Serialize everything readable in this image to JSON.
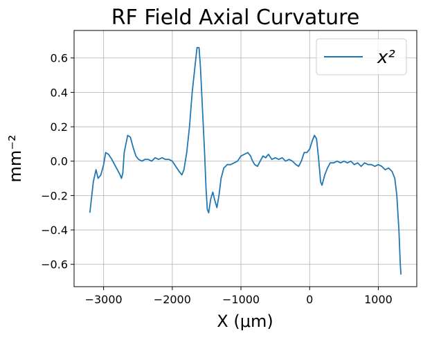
{
  "chart_data": {
    "type": "line",
    "title": "RF Field Axial Curvature",
    "xlabel": "X (μm)",
    "ylabel": "mm⁻²",
    "xlim": [
      -3430,
      1560
    ],
    "ylim": [
      -0.73,
      0.76
    ],
    "x_ticks": [
      -3000,
      -2000,
      -1000,
      0,
      1000
    ],
    "x_tick_labels": [
      "−3000",
      "−2000",
      "−1000",
      "0",
      "1000"
    ],
    "y_ticks": [
      -0.6,
      -0.4,
      -0.2,
      0.0,
      0.2,
      0.4,
      0.6
    ],
    "y_tick_labels": [
      "−0.6",
      "−0.4",
      "−0.2",
      "0.0",
      "0.2",
      "0.4",
      "0.6"
    ],
    "grid": true,
    "legend_position": "top-right",
    "series": [
      {
        "name": "x²",
        "color": "#1f77b4",
        "points": [
          [
            -3200,
            -0.3
          ],
          [
            -3150,
            -0.12
          ],
          [
            -3110,
            -0.05
          ],
          [
            -3080,
            -0.1
          ],
          [
            -3040,
            -0.08
          ],
          [
            -3000,
            -0.02
          ],
          [
            -2970,
            0.05
          ],
          [
            -2930,
            0.04
          ],
          [
            -2880,
            0.01
          ],
          [
            -2840,
            -0.02
          ],
          [
            -2800,
            -0.05
          ],
          [
            -2760,
            -0.08
          ],
          [
            -2740,
            -0.1
          ],
          [
            -2720,
            -0.07
          ],
          [
            -2700,
            0.05
          ],
          [
            -2650,
            0.15
          ],
          [
            -2610,
            0.14
          ],
          [
            -2570,
            0.08
          ],
          [
            -2530,
            0.03
          ],
          [
            -2490,
            0.01
          ],
          [
            -2440,
            0.0
          ],
          [
            -2400,
            0.01
          ],
          [
            -2350,
            0.01
          ],
          [
            -2300,
            0.0
          ],
          [
            -2250,
            0.02
          ],
          [
            -2200,
            0.01
          ],
          [
            -2150,
            0.02
          ],
          [
            -2100,
            0.01
          ],
          [
            -2050,
            0.01
          ],
          [
            -2000,
            0.0
          ],
          [
            -1950,
            -0.03
          ],
          [
            -1900,
            -0.06
          ],
          [
            -1860,
            -0.08
          ],
          [
            -1830,
            -0.05
          ],
          [
            -1790,
            0.05
          ],
          [
            -1750,
            0.2
          ],
          [
            -1710,
            0.4
          ],
          [
            -1670,
            0.55
          ],
          [
            -1640,
            0.66
          ],
          [
            -1610,
            0.66
          ],
          [
            -1590,
            0.55
          ],
          [
            -1560,
            0.3
          ],
          [
            -1530,
            0.05
          ],
          [
            -1510,
            -0.15
          ],
          [
            -1490,
            -0.28
          ],
          [
            -1470,
            -0.3
          ],
          [
            -1440,
            -0.22
          ],
          [
            -1410,
            -0.18
          ],
          [
            -1380,
            -0.23
          ],
          [
            -1350,
            -0.27
          ],
          [
            -1320,
            -0.2
          ],
          [
            -1290,
            -0.1
          ],
          [
            -1250,
            -0.04
          ],
          [
            -1200,
            -0.02
          ],
          [
            -1150,
            -0.02
          ],
          [
            -1100,
            -0.01
          ],
          [
            -1050,
            0.0
          ],
          [
            -1000,
            0.03
          ],
          [
            -950,
            0.04
          ],
          [
            -900,
            0.05
          ],
          [
            -860,
            0.03
          ],
          [
            -830,
            0.0
          ],
          [
            -800,
            -0.02
          ],
          [
            -760,
            -0.03
          ],
          [
            -720,
            0.0
          ],
          [
            -680,
            0.03
          ],
          [
            -640,
            0.02
          ],
          [
            -600,
            0.04
          ],
          [
            -550,
            0.01
          ],
          [
            -500,
            0.02
          ],
          [
            -450,
            0.01
          ],
          [
            -400,
            0.02
          ],
          [
            -350,
            0.0
          ],
          [
            -300,
            0.01
          ],
          [
            -250,
            0.0
          ],
          [
            -200,
            -0.02
          ],
          [
            -160,
            -0.03
          ],
          [
            -120,
            0.0
          ],
          [
            -80,
            0.05
          ],
          [
            -40,
            0.05
          ],
          [
            0,
            0.07
          ],
          [
            40,
            0.12
          ],
          [
            70,
            0.15
          ],
          [
            100,
            0.13
          ],
          [
            130,
            0.02
          ],
          [
            160,
            -0.12
          ],
          [
            180,
            -0.14
          ],
          [
            220,
            -0.08
          ],
          [
            260,
            -0.04
          ],
          [
            300,
            -0.01
          ],
          [
            350,
            -0.01
          ],
          [
            400,
            0.0
          ],
          [
            450,
            -0.01
          ],
          [
            500,
            0.0
          ],
          [
            550,
            -0.01
          ],
          [
            600,
            0.0
          ],
          [
            650,
            -0.02
          ],
          [
            700,
            -0.01
          ],
          [
            750,
            -0.03
          ],
          [
            800,
            -0.01
          ],
          [
            850,
            -0.02
          ],
          [
            900,
            -0.02
          ],
          [
            950,
            -0.03
          ],
          [
            1000,
            -0.02
          ],
          [
            1050,
            -0.03
          ],
          [
            1100,
            -0.05
          ],
          [
            1150,
            -0.04
          ],
          [
            1200,
            -0.06
          ],
          [
            1240,
            -0.1
          ],
          [
            1270,
            -0.2
          ],
          [
            1300,
            -0.4
          ],
          [
            1320,
            -0.6
          ],
          [
            1330,
            -0.66
          ]
        ]
      }
    ]
  }
}
